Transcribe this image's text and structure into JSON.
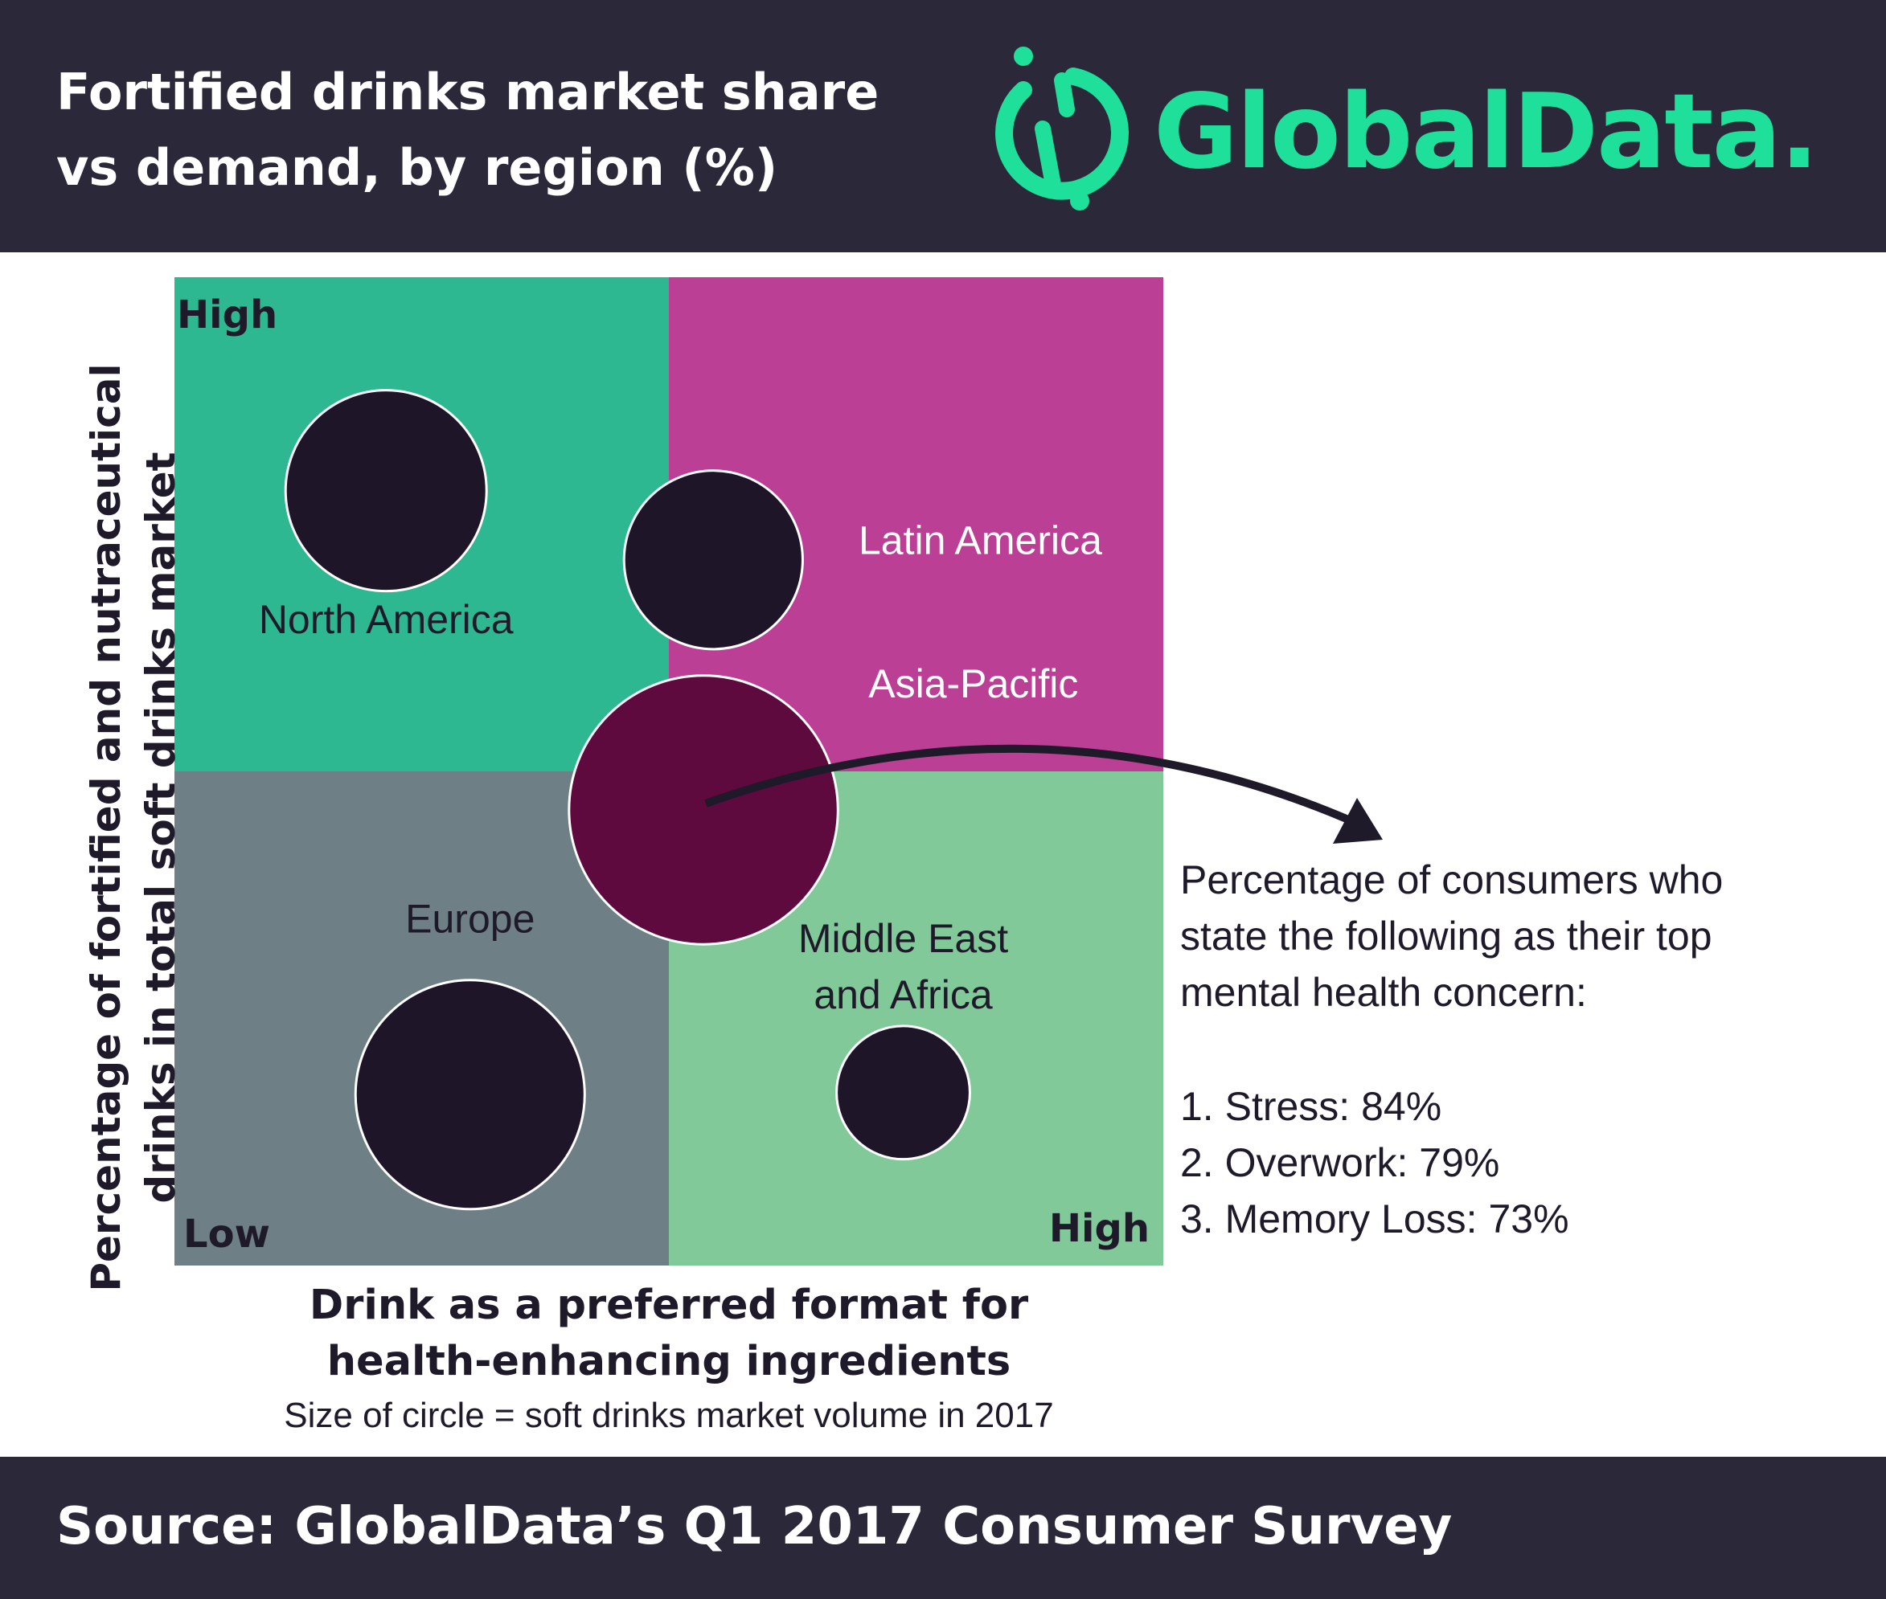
{
  "header": {
    "title_line1": "Fortified drinks market share",
    "title_line2": "vs demand, by region (%)",
    "logo_text": "GlobalData."
  },
  "colors": {
    "header_bg": "#2b2839",
    "brand_green": "#1fe09a",
    "quadrant_top_left": "#2eb891",
    "quadrant_top_right": "#bc3f96",
    "quadrant_bottom_left": "#6f7f86",
    "quadrant_bottom_right": "#82c99a",
    "bubble": "#1e1628",
    "bubble_highlight": "#5e0a3e"
  },
  "chart_data": {
    "type": "bubble",
    "title": "",
    "xlabel_line1": "Drink as a preferred format for",
    "xlabel_line2": "health-enhancing ingredients",
    "ylabel_line1": "Percentage of fortified and nutraceutical",
    "ylabel_line2": "drinks in total soft drinks market",
    "size_note": "Size of circle = soft drinks market volume in 2017",
    "corner_labels": {
      "top_left": "High",
      "bottom_left": "Low",
      "bottom_right": "High"
    },
    "note": "Qualitative matrix: quadrants split at midpoint; bubble area encodes soft drinks market volume in 2017",
    "axes": {
      "x_range": [
        0,
        1
      ],
      "y_range": [
        0,
        1
      ],
      "x_split": 0.5,
      "y_split": 0.5
    },
    "bubbles": [
      {
        "region": "North America",
        "x": 0.214,
        "y": 0.784,
        "size": 1.0,
        "label_x": 0.214,
        "label_y": 0.64
      },
      {
        "region": "Latin America",
        "x": 0.545,
        "y": 0.714,
        "size": 0.79,
        "label_x": 0.815,
        "label_y": 0.72
      },
      {
        "region": "Asia-Pacific",
        "x": 0.535,
        "y": 0.461,
        "size": 1.79,
        "label_x": 0.808,
        "label_y": 0.575
      },
      {
        "region": "Europe",
        "x": 0.299,
        "y": 0.173,
        "size": 1.3,
        "label_x": 0.299,
        "label_y": 0.337
      },
      {
        "region": "Middle East",
        "region_line2": "and Africa",
        "x": 0.737,
        "y": 0.175,
        "size": 0.44,
        "label_x": 0.737,
        "label_y": 0.317
      }
    ],
    "highlight_region": "Asia-Pacific"
  },
  "side_note": {
    "intro_line1": "Percentage of consumers who",
    "intro_line2": "state the following as their top",
    "intro_line3": "mental health concern:",
    "concerns": [
      {
        "text": "1. Stress: 84%",
        "value": 84
      },
      {
        "text": "2. Overwork: 79%",
        "value": 79
      },
      {
        "text": "3. Memory Loss: 73%",
        "value": 73
      }
    ]
  },
  "footer": {
    "source": "Source: GlobalData’s Q1 2017 Consumer Survey"
  }
}
